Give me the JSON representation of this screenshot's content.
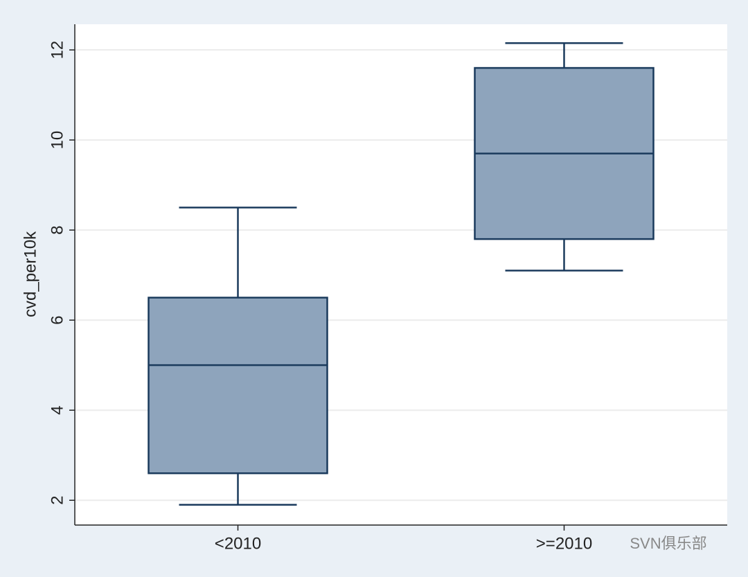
{
  "chart_data": {
    "type": "box",
    "ylabel": "cvd_per10k",
    "categories": [
      "<2010",
      ">=2010"
    ],
    "boxes": [
      {
        "min": 1.9,
        "q1": 2.6,
        "median": 5.0,
        "q3": 6.5,
        "max": 8.5
      },
      {
        "min": 7.1,
        "q1": 7.8,
        "median": 9.7,
        "q3": 11.6,
        "max": 12.15
      }
    ],
    "color": "#8ea4bc",
    "edge_color": "#1a3a5c",
    "ylim": [
      1.45,
      12.57
    ],
    "yticks": [
      2,
      4,
      6,
      8,
      10,
      12
    ],
    "grid": true,
    "watermark": "SVN俱乐部"
  }
}
